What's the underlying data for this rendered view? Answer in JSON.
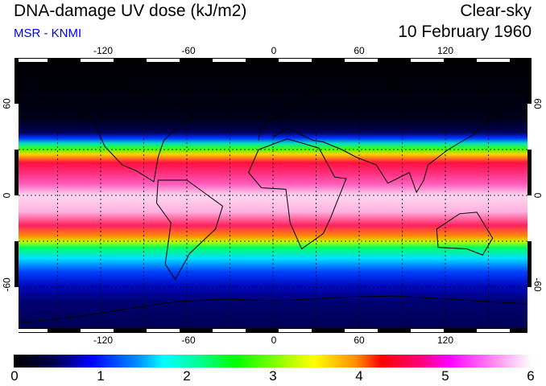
{
  "header": {
    "title": "DNA-damage UV dose (kJ/m2)",
    "source": "MSR - KNMI",
    "condition": "Clear-sky",
    "date": "10 February 1960"
  },
  "map": {
    "lon_labels": [
      "-120",
      "-60",
      "0",
      "60",
      "120"
    ],
    "lat_labels": [
      "60",
      "0",
      "-60"
    ]
  },
  "colorbar": {
    "labels": [
      "0",
      "1",
      "2",
      "3",
      "4",
      "5",
      "6"
    ],
    "range": [
      0,
      6
    ],
    "colors": [
      "#000000",
      "#0000ff",
      "#00ffff",
      "#00ff00",
      "#ffff00",
      "#ff0000",
      "#ff00ff",
      "#ffffff"
    ]
  }
}
